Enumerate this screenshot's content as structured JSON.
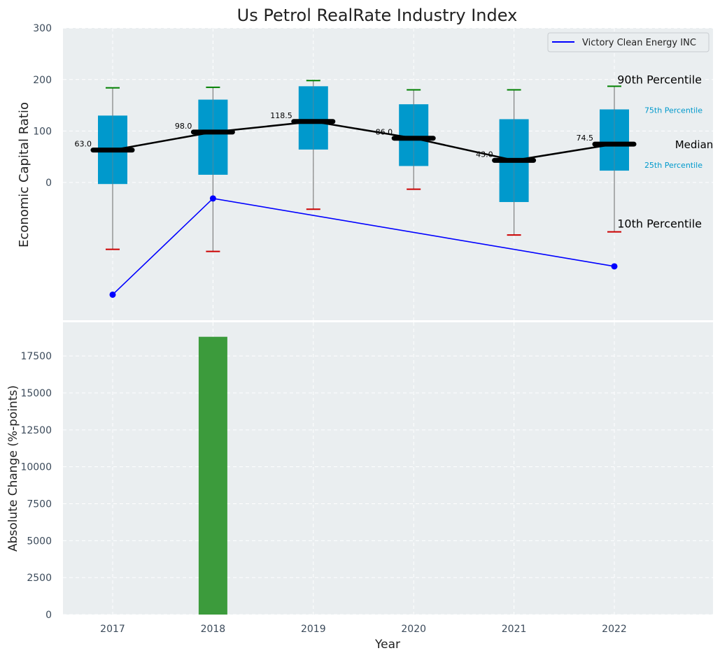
{
  "chart_data": [
    {
      "type": "box",
      "title": "Us Petrol RealRate Industry Index",
      "xlabel": "",
      "ylabel": "Economic Capital Ratio",
      "ylim": [
        -260,
        300
      ],
      "yticks": [
        0,
        100,
        200,
        300
      ],
      "categories": [
        "2017",
        "2018",
        "2019",
        "2020",
        "2021",
        "2022"
      ],
      "grid": true,
      "legend": {
        "position": "top-right",
        "entries": [
          "Victory Clean Energy INC"
        ]
      },
      "percentiles": {
        "p10": [
          -130,
          -134,
          -52,
          -13,
          -102,
          -96
        ],
        "p25": [
          -3,
          15,
          64,
          32,
          -38,
          23
        ],
        "median": [
          63.0,
          98.0,
          118.5,
          86.0,
          43.0,
          74.5
        ],
        "median_labels": [
          "63.0",
          "98.0",
          "118.5",
          "86.0",
          "43.0",
          "74.5"
        ],
        "p75": [
          130,
          161,
          187,
          152,
          123,
          142
        ],
        "p90": [
          184,
          185,
          198,
          180,
          180,
          187
        ]
      },
      "company_series": {
        "name": "Victory Clean Energy INC",
        "x": [
          "2017",
          "2018",
          "2022"
        ],
        "values": [
          -218,
          -31,
          -163
        ]
      },
      "annotations": {
        "p90": "90th Percentile",
        "p75": "75th Percentile",
        "median": "Median",
        "p25": "25th Percentile",
        "p10": "10th Percentile"
      },
      "colors": {
        "box": "#0099cc",
        "whisker": "#808080",
        "cap_top": "#008000",
        "cap_bottom": "#cc0000",
        "median": "#000000",
        "company": "#0000ff",
        "label_small": "#0099cc",
        "background": "#eaeef0"
      }
    },
    {
      "type": "bar",
      "xlabel": "Year",
      "ylabel": "Absolute Change (%-points)",
      "ylim": [
        0,
        19800
      ],
      "yticks": [
        0,
        2500,
        5000,
        7500,
        10000,
        12500,
        15000,
        17500
      ],
      "categories": [
        "2017",
        "2018",
        "2019",
        "2020",
        "2021",
        "2022"
      ],
      "values": [
        0,
        18800,
        0,
        0,
        0,
        0
      ],
      "grid": true,
      "colors": {
        "bar": "#3c9b3c",
        "background": "#eaeef0"
      }
    }
  ]
}
